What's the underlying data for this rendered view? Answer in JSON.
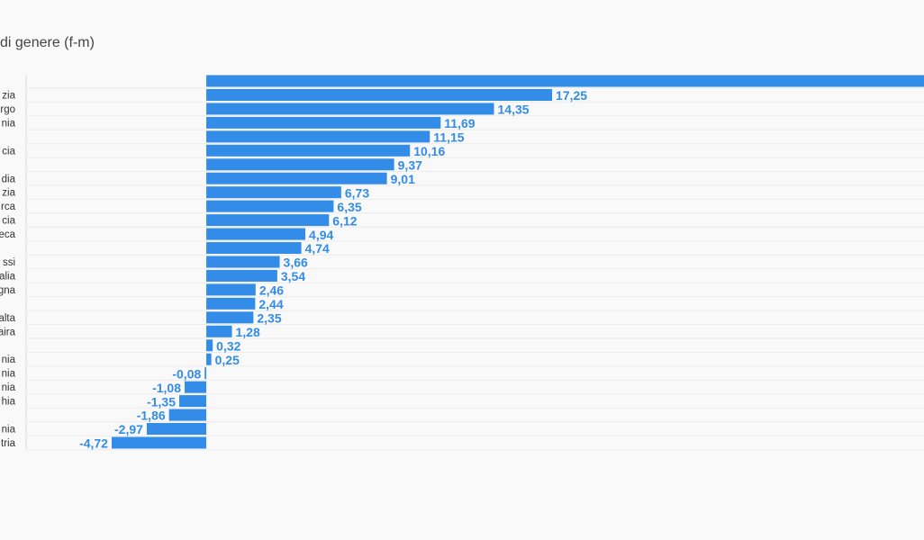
{
  "chart_data": {
    "type": "hbar",
    "title": "di genere (f-m)",
    "categories": [
      null,
      "zia",
      "rgo",
      "nia",
      null,
      "cia",
      null,
      "dia",
      "zia",
      "rca",
      "cia",
      "eca",
      null,
      "ssi",
      "alia",
      "gna",
      null,
      "alta",
      "aira",
      null,
      "nia",
      "nia",
      "nia",
      "hia",
      null,
      "nia",
      "tria"
    ],
    "values": [
      36,
      17.25,
      14.35,
      11.69,
      11.15,
      10.16,
      9.37,
      9.01,
      6.73,
      6.35,
      6.12,
      4.94,
      4.74,
      3.66,
      3.54,
      2.46,
      2.44,
      2.35,
      1.28,
      0.32,
      0.25,
      -0.08,
      -1.08,
      -1.35,
      -1.86,
      -2.97,
      -4.72
    ],
    "value_labels": [
      null,
      "17,25",
      "14,35",
      "11,69",
      "11,15",
      "10,16",
      "9,37",
      "9,01",
      "6,73",
      "6,35",
      "6,12",
      "4,94",
      "4,74",
      "3,66",
      "3,54",
      "2,46",
      "2,44",
      "2,35",
      "1,28",
      "0,32",
      "0,25",
      "-0,08",
      "-1,08",
      "-1,35",
      "-1,86",
      "-2,97",
      "-4,72"
    ],
    "color": "#338ce8",
    "xlim": [
      -10.29,
      35.8
    ]
  }
}
